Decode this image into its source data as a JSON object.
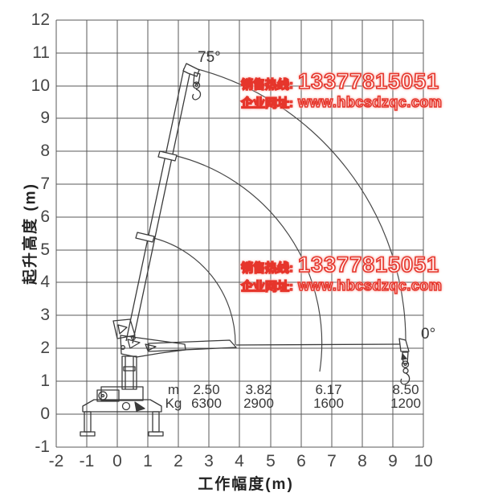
{
  "chart_data": {
    "type": "line",
    "description": "truck crane working range / lifting height diagram",
    "xlabel": "工作幅度(m)",
    "ylabel": "起升高度 (m)",
    "xlim": [
      -2,
      10
    ],
    "ylim": [
      -1,
      12
    ],
    "grid": true,
    "x_ticks": [
      -2,
      -1,
      0,
      1,
      2,
      3,
      4,
      5,
      6,
      7,
      8,
      9,
      10
    ],
    "y_ticks": [
      12,
      11,
      10,
      9,
      8,
      7,
      6,
      5,
      4,
      3,
      2,
      1,
      0,
      -1
    ],
    "angle_labels": {
      "max": "75°",
      "min": "0°"
    },
    "boom_angle_range_deg": [
      0,
      75
    ],
    "series": [
      {
        "name": "boom tip path, extension 3.82 m",
        "radius_m": 3.82,
        "angle_deg": [
          0,
          75
        ]
      },
      {
        "name": "boom tip path, extension 6.17 m",
        "radius_m": 6.17,
        "angle_deg": [
          0,
          75
        ]
      },
      {
        "name": "boom tip path, extension 8.50 m",
        "radius_m": 8.5,
        "angle_deg": [
          0,
          75
        ]
      }
    ],
    "load_table": {
      "radius_unit": "m",
      "capacity_unit": "Kg",
      "radius_m": [
        2.5,
        3.82,
        6.17,
        8.5
      ],
      "capacity_kg": [
        6300,
        2900,
        1600,
        1200
      ],
      "radius_labels": [
        "2.50",
        "3.82",
        "6.17",
        "8.50"
      ],
      "capacity_labels": [
        "6300",
        "2900",
        "1600",
        "1200"
      ]
    }
  },
  "watermark": {
    "hotline_label": "销售热线:",
    "phone": "13377815051",
    "website_label": "企业网址:",
    "url": "www.hbcsdzqc.com",
    "text_color": "#e6352b"
  }
}
